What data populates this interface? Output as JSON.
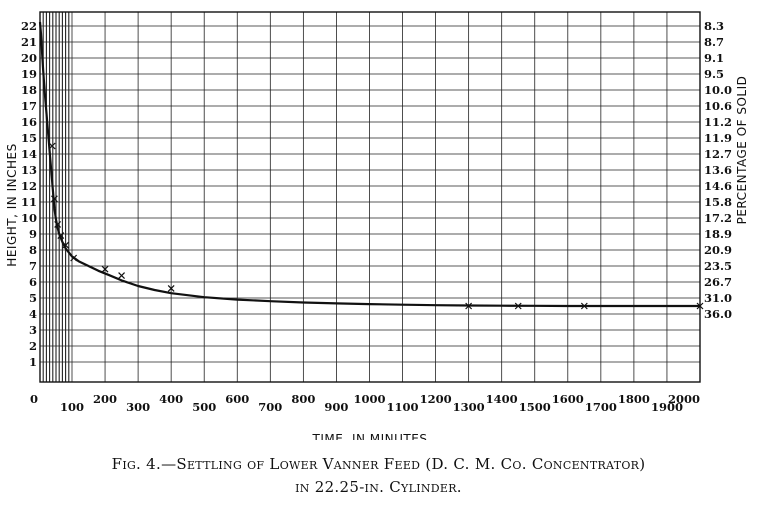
{
  "chart_data": {
    "type": "line",
    "title": "",
    "xlabel": "TIME, IN MINUTES",
    "ylabel": "HEIGHT, IN INCHES",
    "y2label": "PERCENTAGE OF SOLID",
    "grid": true,
    "xlim": [
      0,
      2000
    ],
    "ylim": [
      0,
      22.25
    ],
    "x_tick_labels": [
      "0",
      "100",
      "200",
      "300",
      "400",
      "500",
      "600",
      "700",
      "800",
      "900",
      "1000",
      "1100",
      "1200",
      "1300",
      "1400",
      "1500",
      "1600",
      "1700",
      "1800",
      "1900",
      "2000"
    ],
    "y_tick_labels": [
      "1",
      "2",
      "3",
      "4",
      "5",
      "6",
      "7",
      "8",
      "9",
      "10",
      "11",
      "12",
      "13",
      "14",
      "15",
      "16",
      "17",
      "18",
      "19",
      "20",
      "21",
      "22"
    ],
    "y2_tick_labels": [
      "8.3",
      "8.7",
      "9.1",
      "9.5",
      "10.0",
      "10.6",
      "11.2",
      "11.9",
      "12.7",
      "13.6",
      "14.6",
      "15.8",
      "17.2",
      "18.9",
      "20.9",
      "23.5",
      "26.7",
      "31.0",
      "36.0"
    ],
    "series": [
      {
        "x": [
          0,
          3,
          6,
          10,
          15,
          20,
          25,
          30,
          35,
          40,
          45,
          50,
          55,
          60,
          70,
          80,
          100,
          120,
          150,
          180,
          210,
          250,
          300,
          350,
          400,
          500,
          600,
          700,
          800,
          900,
          1000,
          1100,
          1200,
          1300,
          1400,
          1500,
          1600,
          1700,
          1800,
          1900,
          2000
        ],
        "y": [
          22.25,
          21.5,
          20.5,
          19.2,
          17.8,
          16.6,
          15.4,
          14.2,
          13.0,
          11.8,
          10.6,
          9.9,
          9.4,
          9.0,
          8.5,
          8.1,
          7.6,
          7.3,
          7.0,
          6.7,
          6.45,
          6.1,
          5.75,
          5.5,
          5.3,
          5.05,
          4.9,
          4.8,
          4.72,
          4.66,
          4.62,
          4.58,
          4.55,
          4.53,
          4.52,
          4.51,
          4.5,
          4.5,
          4.5,
          4.5,
          4.5
        ]
      }
    ],
    "markers": {
      "x": [
        38,
        45,
        55,
        65,
        80,
        105,
        200,
        250,
        400,
        1300,
        1450,
        1650,
        2000
      ],
      "y": [
        14.5,
        11.2,
        9.6,
        8.9,
        8.3,
        7.5,
        6.8,
        6.4,
        5.6,
        4.5,
        4.5,
        4.5,
        4.5
      ]
    }
  },
  "caption": {
    "line1": "Fig. 4.—Settling of Lower Vanner Feed (D. C. M. Co. Concentrator)",
    "line2": "in 22.25-in. Cylinder."
  }
}
